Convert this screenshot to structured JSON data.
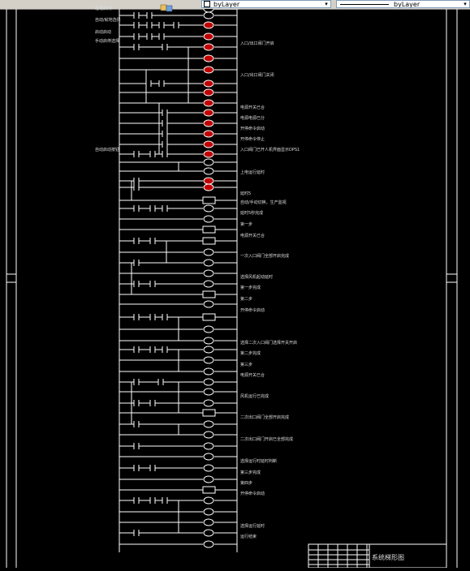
{
  "toolbar": {
    "layer_combo": "byLayer",
    "linetype_combo": "byLayer",
    "layer_icon": "layers-icon",
    "dropdown_icon": "chevron-down-icon"
  },
  "drawing": {
    "left_labels": [
      "溜槽启/停",
      "自动/就地选择",
      "启动启动",
      "手动启停选择",
      "自动启动按钮"
    ],
    "right_labels": [
      "入口/出口阀门开启",
      "入口/出口阀门关闭",
      "电源开关已合",
      "电源电源已分",
      "开停命令启动",
      "开停命令停止",
      "入口阀门已开人机界面显示DPS1",
      "上电运行延时",
      "延时5",
      "自动/手动切换，生产监视",
      "延时5秒完成",
      "第一步",
      "电源开关已合",
      "一次入口阀门全部开启完成",
      "选择风机起动延时",
      "第一步完成",
      "第二步",
      "开停命令启动",
      "选择二次入口阀门选择开关开启",
      "第二步完成",
      "第三步",
      "电源开关已合",
      "风机运行已完成",
      "二次出口阀门全部开启完成",
      "二次出口阀门开启已全部完成",
      "选择运行时延时判断",
      "第三步完成",
      "第四步",
      "开停命令启动",
      "选择运行延时",
      "运行结束"
    ],
    "right_label_dps1": "DPS1",
    "title_block": "系统梯形图"
  }
}
